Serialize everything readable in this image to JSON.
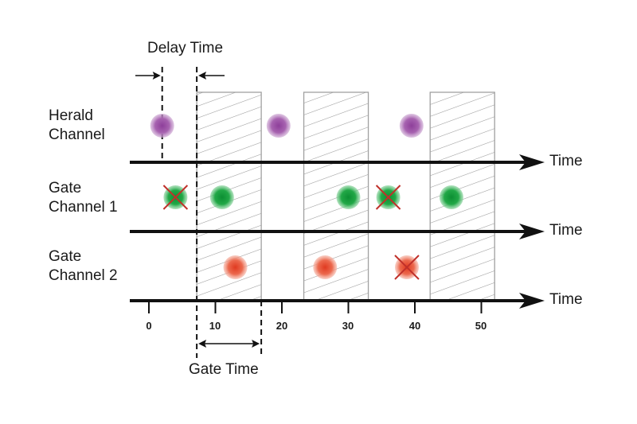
{
  "title_delay": "Delay Time",
  "title_gate": "Gate Time",
  "channels": [
    {
      "line1": "Herald",
      "line2": "Channel"
    },
    {
      "line1": "Gate",
      "line2": "Channel 1"
    },
    {
      "line1": "Gate",
      "line2": "Channel 2"
    }
  ],
  "axis_label": "Time",
  "ticks": [
    "0",
    "10",
    "20",
    "30",
    "40",
    "50"
  ],
  "colors": {
    "herald": "#9b4fa6",
    "gate_ok": "#1aa040",
    "gate2": "#e8553a",
    "cross": "#c0302a",
    "hatch": "#999999",
    "axis": "#111111"
  },
  "events": {
    "herald": [
      {
        "t": 2
      },
      {
        "t": 19.5
      },
      {
        "t": 39.5
      }
    ],
    "gate1": [
      {
        "t": 4,
        "rejected": true
      },
      {
        "t": 11,
        "rejected": false
      },
      {
        "t": 30,
        "rejected": false
      },
      {
        "t": 36,
        "rejected": true
      },
      {
        "t": 45.5,
        "rejected": false
      }
    ],
    "gate2": [
      {
        "t": 13,
        "rejected": false
      },
      {
        "t": 26.5,
        "rejected": false
      },
      {
        "t": 38.8,
        "rejected": true
      }
    ]
  },
  "gate_windows": [
    {
      "start": 7.2,
      "end": 16.9
    },
    {
      "start": 23.3,
      "end": 33
    },
    {
      "start": 42.3,
      "end": 52
    }
  ]
}
